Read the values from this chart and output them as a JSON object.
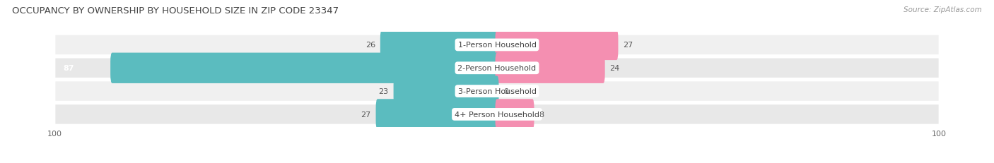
{
  "title": "OCCUPANCY BY OWNERSHIP BY HOUSEHOLD SIZE IN ZIP CODE 23347",
  "source": "Source: ZipAtlas.com",
  "categories": [
    "1-Person Household",
    "2-Person Household",
    "3-Person Household",
    "4+ Person Household"
  ],
  "owner_values": [
    26,
    87,
    23,
    27
  ],
  "renter_values": [
    27,
    24,
    0,
    8
  ],
  "owner_color": "#5bbcbf",
  "renter_color": "#f48fb1",
  "row_bg_even": "#f0f0f0",
  "row_bg_odd": "#e8e8e8",
  "axis_max": 100,
  "title_fontsize": 9.5,
  "label_fontsize": 8.0,
  "tick_fontsize": 8.0,
  "source_fontsize": 7.5,
  "background_color": "#ffffff",
  "bar_height": 0.52,
  "row_rounding": 0.4
}
